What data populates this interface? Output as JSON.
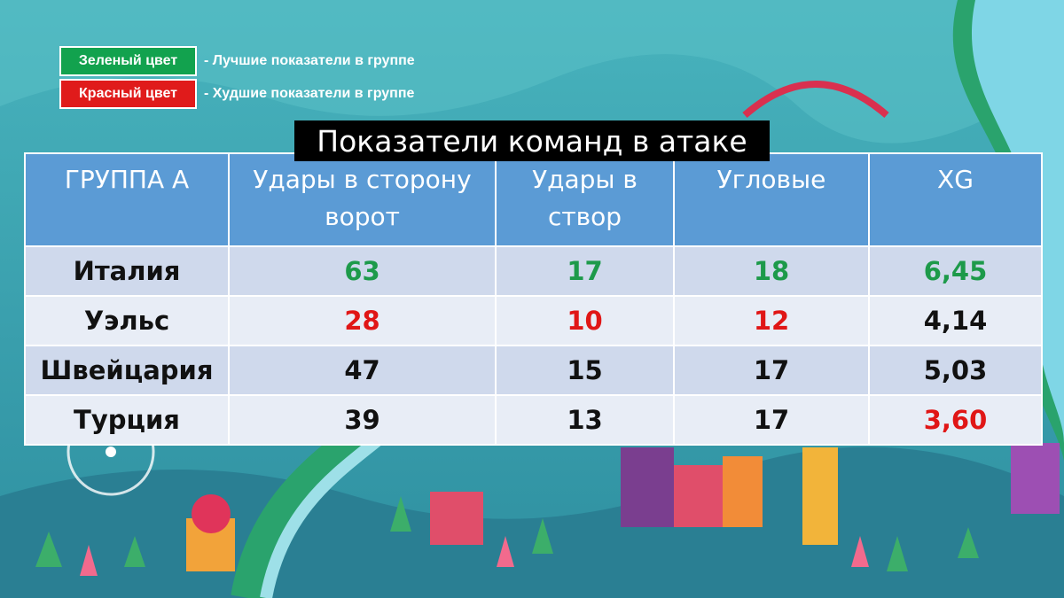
{
  "legend": {
    "green_label": "Зеленый цвет",
    "green_text": "- Лучшие показатели в группе",
    "red_label": "Красный цвет",
    "red_text": "- Худшие показатели в группе"
  },
  "title": "Показатели команд в атаке",
  "table": {
    "headers": [
      "ГРУППА А",
      "Удары в сторону ворот",
      "Удары в створ",
      "Угловые",
      "XG"
    ],
    "rows": [
      {
        "team": "Италия",
        "shots": "63",
        "on_target": "17",
        "corners": "18",
        "xg": "6,45"
      },
      {
        "team": "Уэльс",
        "shots": "28",
        "on_target": "10",
        "corners": "12",
        "xg": "4,14"
      },
      {
        "team": "Швейцария",
        "shots": "47",
        "on_target": "15",
        "corners": "17",
        "xg": "5,03"
      },
      {
        "team": "Турция",
        "shots": "39",
        "on_target": "13",
        "corners": "17",
        "xg": "3,60"
      }
    ]
  },
  "colors": {
    "best": "#1d9a4a",
    "worst": "#e01616",
    "header_bg": "#5b9bd5",
    "row_odd": "#cfd9ec",
    "row_even": "#e8edf6"
  }
}
